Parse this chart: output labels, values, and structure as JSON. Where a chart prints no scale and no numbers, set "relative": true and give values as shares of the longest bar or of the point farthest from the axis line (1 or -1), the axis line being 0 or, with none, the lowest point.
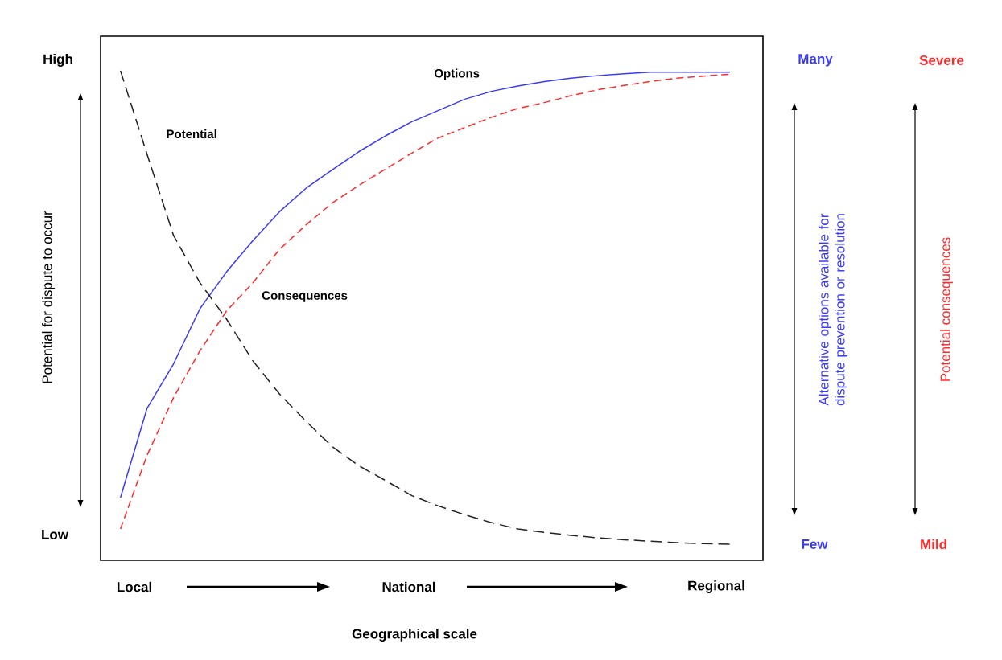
{
  "chart_data": {
    "type": "line",
    "relative": true,
    "ylabel": "Potential for dispute to occur",
    "y2label": "Alternative options available for dispute prevention or resolution",
    "y3label": "Potential consequences",
    "annotations": [
      "High",
      "Low",
      "Many",
      "Few",
      "Severe",
      "Mild",
      "Local",
      "National",
      "Regional",
      "Geographical scale"
    ],
    "categories": [
      null,
      null,
      null,
      null,
      null,
      null,
      null,
      null,
      null,
      null,
      null,
      null,
      null,
      null,
      null,
      null,
      null,
      null,
      null,
      null,
      null,
      null,
      null,
      null
    ],
    "series": [
      {
        "name": "Options",
        "color": "#3b3bf5",
        "line_style": "solid",
        "values": [
          0.128,
          0.31,
          0.401,
          0.514,
          0.589,
          0.653,
          0.712,
          0.76,
          0.798,
          0.835,
          0.867,
          0.896,
          0.919,
          0.942,
          0.958,
          0.969,
          0.978,
          0.985,
          0.99,
          0.994,
          0.997,
          0.997,
          0.997,
          0.997
        ]
      },
      {
        "name": "Consequences",
        "color": "#ff2a2a",
        "line_style": "dashed",
        "values": [
          0.064,
          0.214,
          0.332,
          0.428,
          0.509,
          0.567,
          0.635,
          0.685,
          0.73,
          0.766,
          0.799,
          0.832,
          0.863,
          0.884,
          0.905,
          0.923,
          0.935,
          0.949,
          0.961,
          0.97,
          0.978,
          0.985,
          0.989,
          0.993
        ]
      },
      {
        "name": "Potential",
        "color": "#222222",
        "line_style": "dashed",
        "values": [
          1,
          0.83,
          0.664,
          0.567,
          0.493,
          0.407,
          0.34,
          0.284,
          0.232,
          0.193,
          0.163,
          0.132,
          0.111,
          0.093,
          0.077,
          0.064,
          0.057,
          0.051,
          0.046,
          0.042,
          0.039,
          0.036,
          0.034,
          0.033
        ]
      }
    ]
  }
}
